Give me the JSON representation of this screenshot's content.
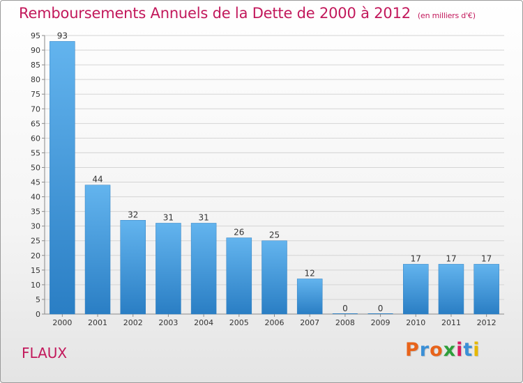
{
  "header": {
    "title": "Remboursements Annuels de la Dette de 2000 à 2012",
    "unit": "(en milliers d'€)"
  },
  "footer": {
    "place": "FLAUX",
    "logo_text": "Proxiti",
    "logo_colors": [
      "#e8631a",
      "#3a8fd6",
      "#e8631a",
      "#2e9e3a",
      "#d81b60",
      "#3a8fd6",
      "#e6b800"
    ]
  },
  "colors": {
    "title": "#c2185b",
    "bar_top": "#63b4ee",
    "bar_bottom": "#2a7ec4"
  },
  "chart_data": {
    "type": "bar",
    "title": "Remboursements Annuels de la Dette de 2000 à 2012",
    "xlabel": "",
    "ylabel": "",
    "categories": [
      "2000",
      "2001",
      "2002",
      "2003",
      "2004",
      "2005",
      "2006",
      "2007",
      "2008",
      "2009",
      "2010",
      "2011",
      "2012"
    ],
    "values": [
      93,
      44,
      32,
      31,
      31,
      26,
      25,
      12,
      0,
      0,
      17,
      17,
      17
    ],
    "data_labels": [
      "93",
      "44",
      "32",
      "31",
      "31",
      "26",
      "25",
      "12",
      "0",
      "0",
      "17",
      "17",
      "17"
    ],
    "ylim": [
      0,
      95
    ],
    "yticks": [
      0,
      5,
      10,
      15,
      20,
      25,
      30,
      35,
      40,
      45,
      50,
      55,
      60,
      65,
      70,
      75,
      80,
      85,
      90,
      95
    ],
    "grid": true
  }
}
